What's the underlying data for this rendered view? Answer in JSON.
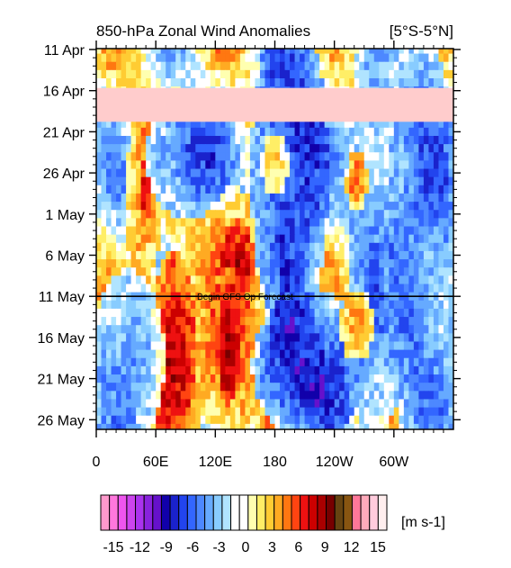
{
  "chart_data": {
    "type": "heatmap",
    "title": "850-hPa Zonal Wind Anomalies",
    "region_label": "[5°S-5°N]",
    "x_ticks": [
      "0",
      "60E",
      "120E",
      "180",
      "120W",
      "60W"
    ],
    "x_tick_lons": [
      0,
      60,
      120,
      180,
      240,
      300
    ],
    "xlim": [
      0,
      360
    ],
    "y_ticks": [
      "11 Apr",
      "16 Apr",
      "21 Apr",
      "26 Apr",
      "1 May",
      "6 May",
      "11 May",
      "16 May",
      "21 May",
      "26 May"
    ],
    "ylim_dates": [
      "11 Apr",
      "26 May"
    ],
    "annotation": "Begin GFS Op Forecast",
    "forecast_start": "11 May",
    "missing_band": [
      "16 Apr",
      "20 Apr"
    ],
    "missing_color": "#ffcccc",
    "colorbar": {
      "unit_label": "[m s-1]",
      "tick_labels": [
        "-15",
        "-12",
        "-9",
        "-6",
        "-3",
        "0",
        "3",
        "6",
        "9",
        "12",
        "15"
      ],
      "tick_values": [
        -15,
        -12,
        -9,
        -6,
        -3,
        0,
        3,
        6,
        9,
        12,
        15
      ],
      "colors": [
        "#ff99cc",
        "#ff77dd",
        "#ee55ee",
        "#cc44ee",
        "#aa33ee",
        "#8822dd",
        "#6611cc",
        "#1100aa",
        "#1a22cc",
        "#2244ee",
        "#3366ff",
        "#4d88ff",
        "#66aaff",
        "#88ccff",
        "#b0e4ff",
        "#ffffff",
        "#ffffff",
        "#ffffb0",
        "#ffee66",
        "#ffcc33",
        "#ffaa22",
        "#ff7711",
        "#ff4411",
        "#ee1111",
        "#cc0000",
        "#aa0000",
        "#770000",
        "#664411",
        "#885511",
        "#ff7799",
        "#ffaabb",
        "#ffccdd",
        "#ffeeee"
      ]
    },
    "features": [
      {
        "lon0": 48,
        "lon1": 52,
        "d0": 14,
        "d1": 20,
        "val": 8
      },
      {
        "lon0": 35,
        "lon1": 60,
        "d0": 9,
        "d1": 28,
        "val": 4
      },
      {
        "lon0": 130,
        "lon1": 155,
        "d0": 23,
        "d1": 30,
        "val": 9
      },
      {
        "lon0": 100,
        "lon1": 175,
        "d0": 20,
        "d1": 34,
        "val": 4
      },
      {
        "lon0": 60,
        "lon1": 95,
        "d0": 28,
        "d1": 45,
        "val": 10
      },
      {
        "lon0": 40,
        "lon1": 110,
        "d0": 30,
        "d1": 45,
        "val": 4
      },
      {
        "lon0": 125,
        "lon1": 140,
        "d0": 33,
        "d1": 41,
        "val": 9
      },
      {
        "lon0": 110,
        "lon1": 160,
        "d0": 30,
        "d1": 45,
        "val": 4
      },
      {
        "lon0": 165,
        "lon1": 225,
        "d0": 0,
        "d1": 30,
        "val": -7
      },
      {
        "lon0": 170,
        "lon1": 260,
        "d0": 32,
        "d1": 45,
        "val": -7
      },
      {
        "lon0": 60,
        "lon1": 125,
        "d0": 8,
        "d1": 18,
        "val": -6
      },
      {
        "lon0": 5,
        "lon1": 60,
        "d0": 30,
        "d1": 45,
        "val": -5
      },
      {
        "lon0": 260,
        "lon1": 300,
        "d0": 0,
        "d1": 45,
        "val": -4
      },
      {
        "lon0": 300,
        "lon1": 360,
        "d0": 5,
        "d1": 45,
        "val": -5
      },
      {
        "lon0": 255,
        "lon1": 270,
        "d0": 14,
        "d1": 18,
        "val": 6
      },
      {
        "lon0": 250,
        "lon1": 275,
        "d0": 31,
        "d1": 36,
        "val": 5
      },
      {
        "lon0": 170,
        "lon1": 190,
        "d0": 12,
        "d1": 16,
        "val": 4
      }
    ]
  }
}
